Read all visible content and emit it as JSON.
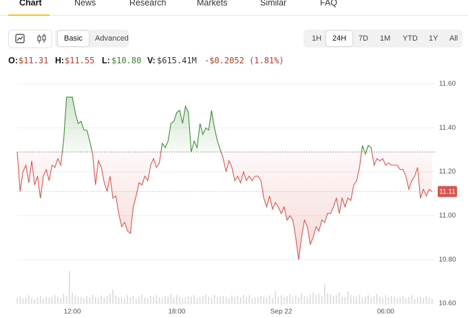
{
  "tabs": [
    "Chart",
    "News",
    "Research",
    "Markets",
    "Similar",
    "FAQ"
  ],
  "active_tab": 0,
  "chart_modes": [
    "Basic",
    "Advanced"
  ],
  "active_mode": 0,
  "ranges": [
    "1H",
    "24H",
    "7D",
    "1M",
    "YTD",
    "1Y",
    "All"
  ],
  "active_range": 1,
  "ohlc": [
    {
      "label": "O:",
      "value": "$11.31",
      "color": "#b03a2e"
    },
    {
      "label": "H:",
      "value": "$11.55",
      "color": "#b03a2e"
    },
    {
      "label": "L:",
      "value": "$10.80",
      "color": "#3a7d2c"
    },
    {
      "label": "V:",
      "value": "$615.41M",
      "color": "#333333"
    }
  ],
  "change": {
    "value": "-$0.2052 (1.81%)",
    "color": "#b03a2e"
  },
  "chart_data": {
    "type": "line",
    "x": [
      -190,
      -180,
      -170,
      -160,
      -150,
      -140,
      -130,
      -120,
      -110,
      -100,
      -90,
      -80,
      -70,
      -60,
      -50,
      -40,
      -30,
      -20,
      -10,
      0,
      10,
      20,
      30,
      40,
      50,
      60,
      70,
      80,
      90,
      100,
      110,
      120,
      130,
      140,
      150,
      160,
      170,
      180,
      190,
      200,
      210,
      220,
      230,
      240,
      250,
      260,
      270,
      280,
      290,
      300,
      310,
      320,
      330,
      340,
      350,
      360,
      370,
      380,
      390,
      400,
      410,
      420,
      430,
      440,
      450,
      460,
      470,
      480,
      490,
      500,
      510,
      520,
      530,
      540,
      550,
      560,
      570,
      580,
      590,
      600,
      610,
      620,
      630,
      640,
      650,
      660,
      670,
      680,
      690,
      700,
      710,
      720,
      730,
      740,
      750,
      760,
      770,
      780,
      790,
      800,
      810,
      820,
      830,
      840,
      850,
      860,
      870,
      880,
      890,
      900,
      910,
      920,
      930,
      940,
      950,
      960,
      970,
      980,
      990,
      1000,
      1010,
      1020,
      1030,
      1040,
      1050,
      1060,
      1070,
      1080,
      1090,
      1100,
      1110,
      1120,
      1130,
      1140,
      1150,
      1160,
      1170,
      1180,
      1190,
      1200,
      1210,
      1220,
      1230,
      1240
    ],
    "values": [
      11.29,
      11.11,
      11.2,
      11.23,
      11.15,
      11.25,
      11.14,
      11.18,
      11.08,
      11.18,
      11.21,
      11.16,
      11.23,
      11.22,
      11.26,
      11.23,
      11.34,
      11.54,
      11.54,
      11.54,
      11.47,
      11.42,
      11.43,
      11.39,
      11.39,
      11.34,
      11.28,
      11.14,
      11.25,
      11.22,
      11.15,
      11.11,
      11.18,
      11.08,
      11.09,
      11.01,
      10.95,
      10.97,
      10.93,
      10.92,
      11.04,
      11.09,
      11.15,
      11.14,
      11.18,
      11.16,
      11.23,
      11.26,
      11.22,
      11.24,
      11.33,
      11.31,
      11.34,
      11.42,
      11.43,
      11.47,
      11.48,
      11.42,
      11.5,
      11.47,
      11.29,
      11.34,
      11.31,
      11.42,
      11.37,
      11.4,
      11.39,
      11.48,
      11.4,
      11.34,
      11.3,
      11.26,
      11.2,
      11.25,
      11.22,
      11.16,
      11.18,
      11.15,
      11.2,
      11.16,
      11.18,
      11.16,
      11.18,
      11.18,
      11.16,
      11.08,
      11.04,
      11.09,
      11.03,
      11.06,
      11.04,
      11.01,
      11.04,
      10.98,
      11.0,
      10.98,
      10.9,
      10.8,
      10.9,
      10.98,
      10.95,
      10.87,
      10.9,
      10.95,
      10.93,
      10.98,
      10.97,
      11.01,
      11.01,
      11.04,
      11.08,
      11.01,
      11.08,
      11.04,
      11.08,
      11.07,
      11.14,
      11.16,
      11.22,
      11.32,
      11.28,
      11.32,
      11.31,
      11.23,
      11.26,
      11.25,
      11.26,
      11.23,
      11.24,
      11.23,
      11.23,
      11.23,
      11.21,
      11.21,
      11.18,
      11.12,
      11.16,
      11.18,
      11.22,
      11.08,
      11.12,
      11.09,
      11.12,
      11.11
    ],
    "volume": [
      8,
      10,
      7,
      9,
      12,
      8,
      6,
      9,
      11,
      7,
      10,
      8,
      9,
      12,
      10,
      8,
      14,
      11,
      47,
      16,
      12,
      10,
      9,
      8,
      11,
      9,
      13,
      10,
      8,
      12,
      9,
      11,
      14,
      20,
      12,
      9,
      10,
      8,
      12,
      9,
      11,
      7,
      10,
      13,
      9,
      8,
      11,
      10,
      12,
      9,
      8,
      11,
      10,
      14,
      9,
      12,
      10,
      8,
      9,
      11,
      10,
      12,
      8,
      9,
      11,
      13,
      10,
      8,
      12,
      9,
      10,
      11,
      9,
      8,
      12,
      10,
      11,
      9,
      13,
      10,
      12,
      8,
      9,
      10,
      11,
      10,
      9,
      12,
      8,
      18,
      10,
      12,
      9,
      11,
      14,
      10,
      12,
      9,
      15,
      11,
      10,
      13,
      16,
      12,
      14,
      11,
      28,
      15,
      13,
      11,
      12,
      16,
      10,
      9,
      18,
      12,
      11,
      10,
      13,
      9,
      10,
      12,
      9,
      11,
      14,
      10,
      8,
      12,
      9,
      11,
      10,
      8,
      9,
      11,
      8,
      10,
      12,
      7,
      9,
      10,
      8,
      11,
      9,
      7
    ],
    "volume_lim": [
      0,
      60
    ],
    "volume_color": "#d9d9d9",
    "baseline": 11.29,
    "price_marker": {
      "value": 11.11,
      "label": "11.11",
      "color": "#d9534f"
    },
    "up_color": "#3d8b37",
    "down_color": "#d9534f",
    "xlim": [
      -190,
      1250
    ],
    "xticks": [
      {
        "value": 0,
        "label": "12:00"
      },
      {
        "value": 360,
        "label": "18:00"
      },
      {
        "value": 720,
        "label": "Sep 22"
      },
      {
        "value": 1080,
        "label": "06:00"
      }
    ],
    "ylim": [
      10.6,
      11.6
    ],
    "yticks": [
      {
        "value": 10.6,
        "label": "10.60"
      },
      {
        "value": 10.8,
        "label": "10.80"
      },
      {
        "value": 11.0,
        "label": "11.00"
      },
      {
        "value": 11.2,
        "label": "11.20"
      },
      {
        "value": 11.4,
        "label": "11.40"
      },
      {
        "value": 11.6,
        "label": "11.60"
      }
    ],
    "grid": true
  }
}
